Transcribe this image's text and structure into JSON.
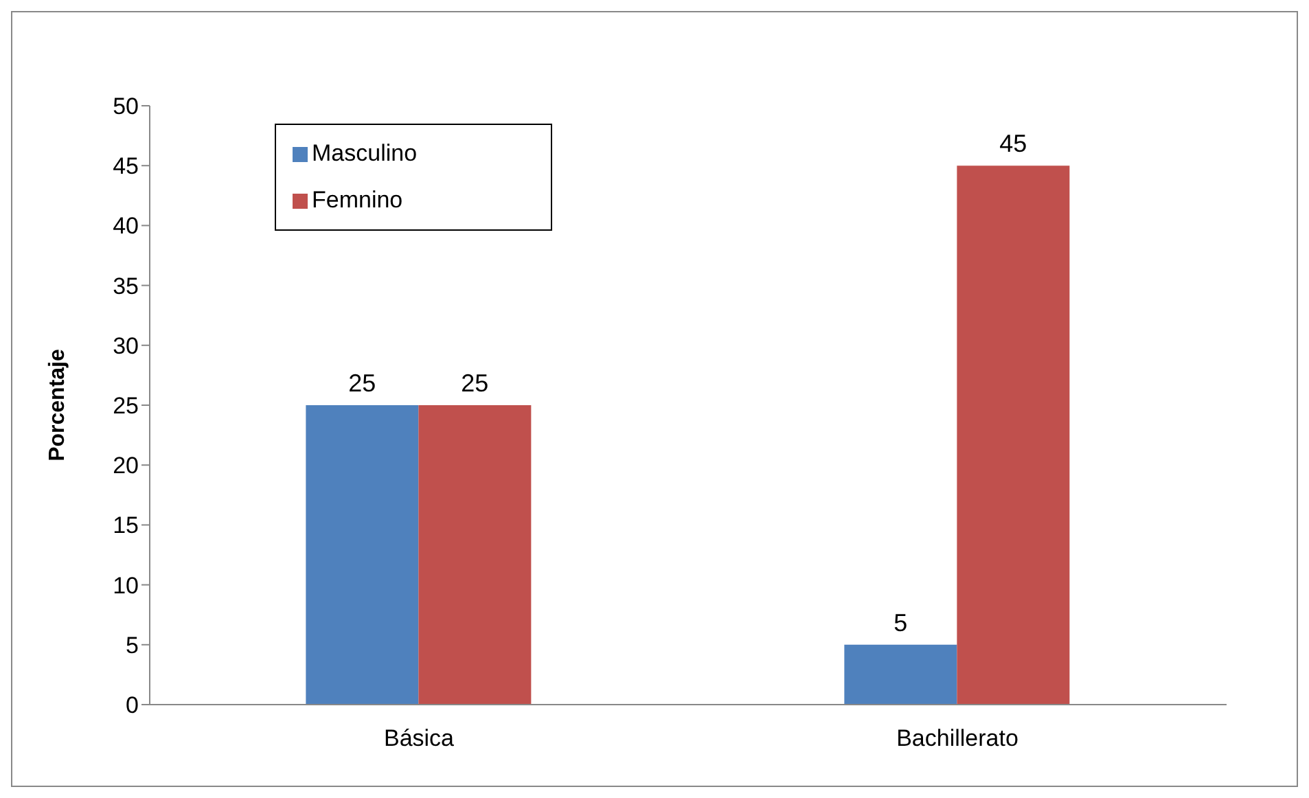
{
  "chart_data": {
    "type": "bar",
    "ylabel": "Porcentaje",
    "categories": [
      "Básica",
      "Bachillerato"
    ],
    "series": [
      {
        "name": "Masculino",
        "color": "#4f81bd",
        "values": [
          25,
          5
        ]
      },
      {
        "name": "Femnino",
        "color": "#c0504d",
        "values": [
          25,
          45
        ]
      }
    ],
    "ylim": [
      0,
      50
    ],
    "yticks": [
      0,
      5,
      10,
      15,
      20,
      25,
      30,
      35,
      40,
      45,
      50
    ],
    "data_labels": true,
    "legend": "top left"
  }
}
